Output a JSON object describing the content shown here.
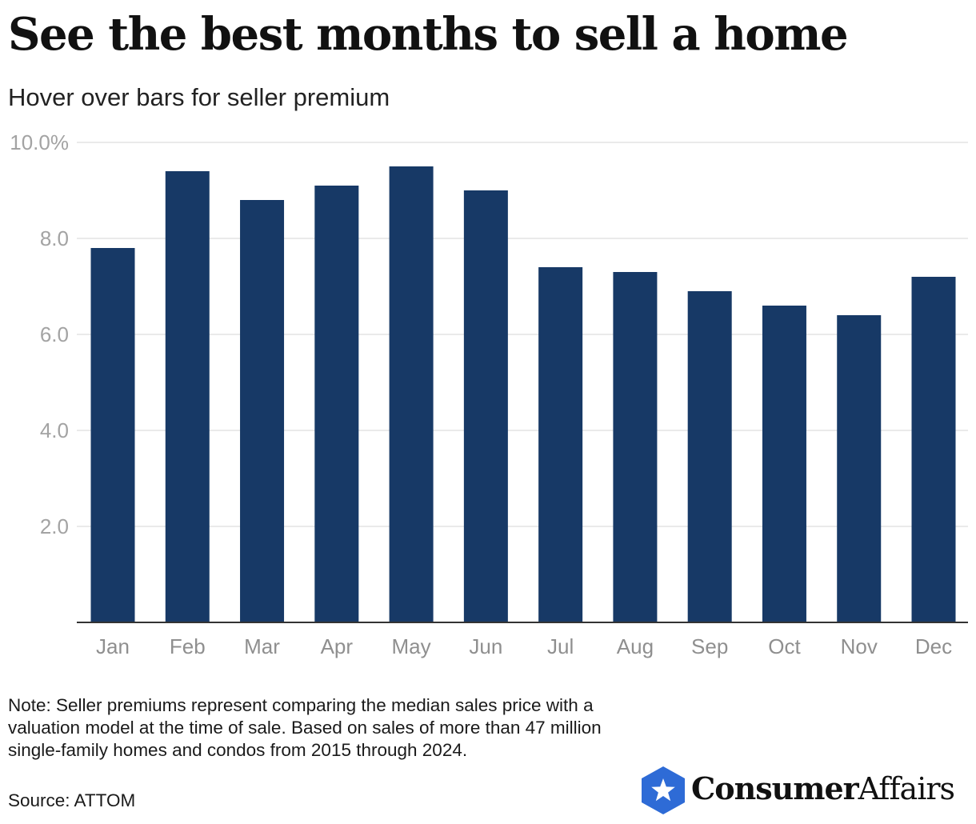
{
  "title": "See the best months to sell a home",
  "subtitle": "Hover over bars for seller premium",
  "note": "Note: Seller premiums represent comparing the median sales price with a valuation model at the time of sale. Based on sales of more than 47 million single-family homes and condos from 2015 through 2024.",
  "source": "Source: ATTOM",
  "brand": {
    "part1": "Consumer",
    "part2": "Affairs",
    "icon": "star-shield-icon"
  },
  "colors": {
    "bar": "#173966",
    "grid": "#e3e3e3",
    "axis": "#333333",
    "brand_blue": "#2e6bd6"
  },
  "chart_data": {
    "type": "bar",
    "title": "See the best months to sell a home",
    "subtitle": "Hover over bars for seller premium",
    "xlabel": "",
    "ylabel": "",
    "categories": [
      "Jan",
      "Feb",
      "Mar",
      "Apr",
      "May",
      "Jun",
      "Jul",
      "Aug",
      "Sep",
      "Oct",
      "Nov",
      "Dec"
    ],
    "values": [
      7.8,
      9.4,
      8.8,
      9.1,
      9.5,
      9.0,
      7.4,
      7.3,
      6.9,
      6.6,
      6.4,
      7.2
    ],
    "ylim": [
      0,
      10
    ],
    "yticks": [
      2,
      4,
      6,
      8,
      10
    ],
    "ytick_labels": [
      "2.0",
      "4.0",
      "6.0",
      "8.0",
      "10.0%"
    ],
    "grid": true,
    "legend": "none"
  }
}
